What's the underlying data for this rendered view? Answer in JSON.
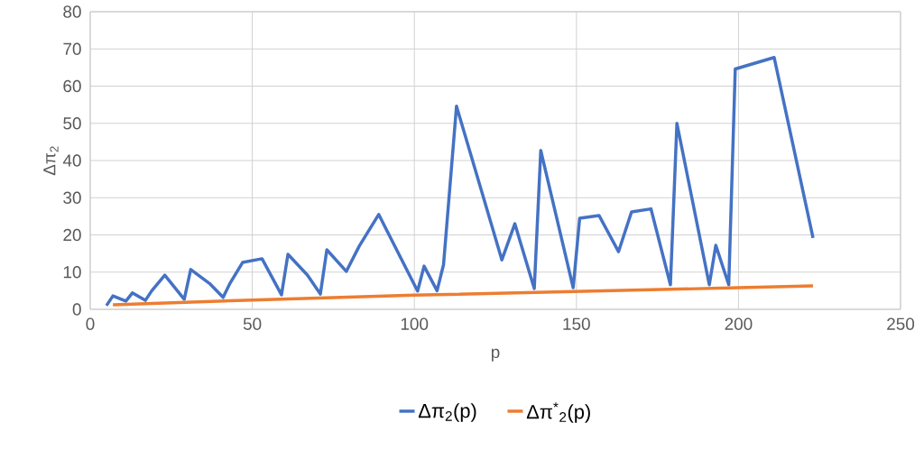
{
  "chart_data": {
    "type": "line",
    "xlabel": "p",
    "ylabel": "Δπ$_{2}$",
    "xlim": [
      0,
      250
    ],
    "xticks": [
      0,
      50,
      100,
      150,
      200,
      250
    ],
    "ylim": [
      0,
      80
    ],
    "yticks": [
      0,
      10,
      20,
      30,
      40,
      50,
      60,
      70,
      80
    ],
    "grid": true,
    "legend": "bottom",
    "marker": "none",
    "line_style": "solid",
    "series": [
      {
        "name": "Δπ$_{2}$(p)",
        "color": "#4472c4",
        "x": [
          5,
          7,
          11,
          13,
          17,
          19,
          23,
          29,
          31,
          37,
          41,
          43,
          47,
          53,
          59,
          61,
          67,
          71,
          73,
          79,
          83,
          89,
          101,
          103,
          107,
          109,
          113,
          127,
          131,
          137,
          139,
          149,
          151,
          157,
          163,
          167,
          173,
          179,
          181,
          191,
          193,
          197,
          199,
          211,
          223
        ],
        "values": [
          1,
          3.6,
          2.2,
          4.4,
          2.4,
          5,
          9.2,
          2.7,
          10.7,
          6.8,
          3.2,
          6.8,
          12.6,
          13.6,
          3.9,
          14.8,
          9.2,
          4.1,
          16,
          10.2,
          17,
          25.5,
          4.9,
          11.6,
          5,
          12,
          54.6,
          13.3,
          23,
          5.6,
          42.7,
          5.8,
          24.5,
          25.2,
          15.5,
          26.2,
          27,
          6.6,
          50,
          6.6,
          17.2,
          6.6,
          64.6,
          67.7,
          19.2
        ]
      },
      {
        "name": "Δπ$^{*}$$_{2}$(p)",
        "color": "#ed7d31",
        "x": [
          7,
          50,
          100,
          150,
          200,
          223
        ],
        "values": [
          1.2,
          2.5,
          3.8,
          4.8,
          5.8,
          6.3
        ]
      }
    ]
  }
}
